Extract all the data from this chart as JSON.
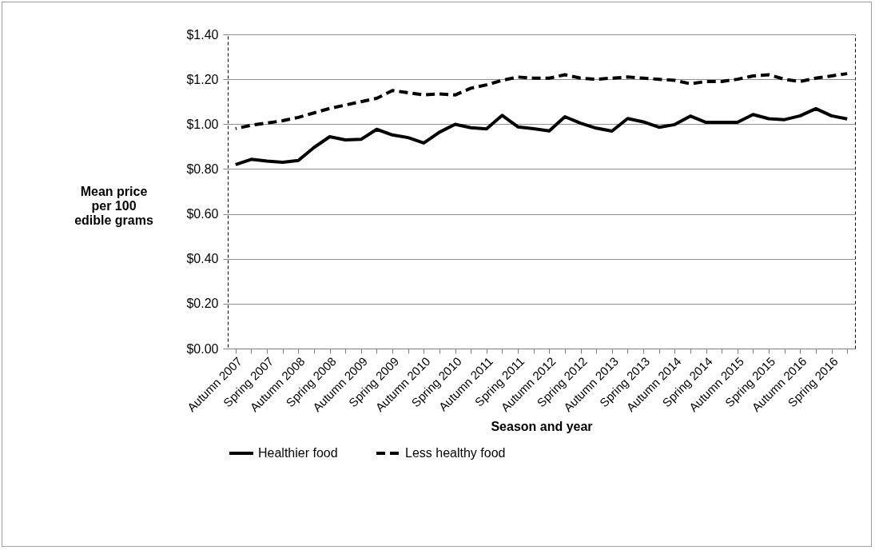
{
  "chart_data": {
    "type": "line",
    "xlabel": "Season and year",
    "ylabel": "Mean price per 100 edible grams",
    "categories": [
      "Autumn 2007",
      null,
      "Spring 2007",
      null,
      "Autumn 2008",
      null,
      "Spring 2008",
      null,
      "Autumn 2009",
      null,
      "Spring 2009",
      null,
      "Autumn 2010",
      null,
      "Spring 2010",
      null,
      "Autumn 2011",
      null,
      "Spring 2011",
      null,
      "Autumn 2012",
      null,
      "Spring 2012",
      null,
      "Autumn 2013",
      null,
      "Spring 2013",
      null,
      "Autumn 2014",
      null,
      "Spring 2014",
      null,
      "Autumn 2015",
      null,
      "Spring 2015",
      null,
      "Autumn 2016",
      null,
      "Spring 2016",
      null
    ],
    "series": [
      {
        "name": "Healthier food",
        "color": "#000000",
        "line_style": "solid",
        "values": [
          0.82,
          0.843,
          0.835,
          0.83,
          0.838,
          0.896,
          0.944,
          0.93,
          0.932,
          0.977,
          0.952,
          0.94,
          0.916,
          0.964,
          0.999,
          0.984,
          0.979,
          1.039,
          0.988,
          0.98,
          0.97,
          1.033,
          1.004,
          0.982,
          0.969,
          1.025,
          1.01,
          0.986,
          0.998,
          1.036,
          1.008,
          1.008,
          1.008,
          1.043,
          1.024,
          1.02,
          1.037,
          1.069,
          1.037,
          1.023
        ]
      },
      {
        "name": "Less healthy food",
        "color": "#000000",
        "line_style": "dashed",
        "values": [
          0.98,
          0.995,
          1.005,
          1.015,
          1.03,
          1.05,
          1.07,
          1.085,
          1.1,
          1.115,
          1.15,
          1.14,
          1.13,
          1.135,
          1.13,
          1.16,
          1.175,
          1.195,
          1.21,
          1.205,
          1.205,
          1.22,
          1.205,
          1.2,
          1.205,
          1.21,
          1.205,
          1.2,
          1.195,
          1.18,
          1.19,
          1.19,
          1.2,
          1.215,
          1.22,
          1.2,
          1.19,
          1.205,
          1.215,
          1.225
        ]
      }
    ],
    "ylim": [
      0,
      1.4
    ],
    "yticks": [
      {
        "value": 0,
        "label": "$0.00"
      },
      {
        "value": 0.2,
        "label": "$0.20"
      },
      {
        "value": 0.4,
        "label": "$0.40"
      },
      {
        "value": 0.6,
        "label": "$0.60"
      },
      {
        "value": 0.8,
        "label": "$0.80"
      },
      {
        "value": 1.0,
        "label": "$1.00"
      },
      {
        "value": 1.2,
        "label": "$1.20"
      },
      {
        "value": 1.4,
        "label": "$1.40"
      }
    ],
    "grid": "y",
    "legend": "bottom"
  }
}
